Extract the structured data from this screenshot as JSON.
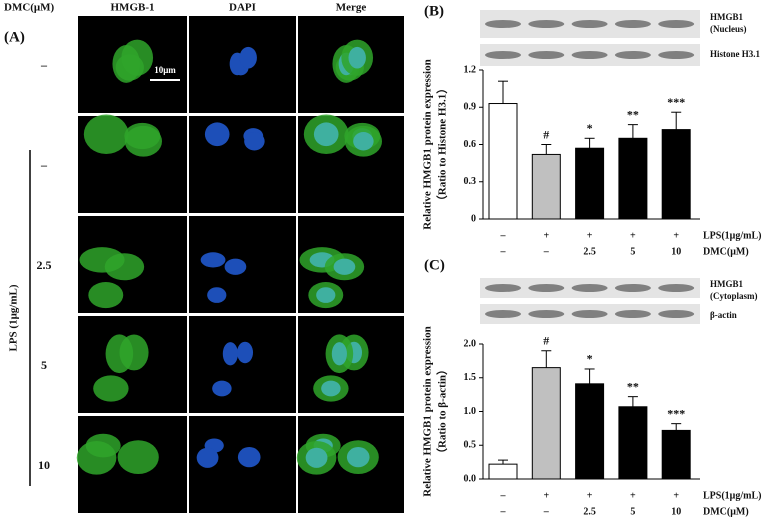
{
  "panel_a": {
    "panel": "(A)",
    "header": "DMC(μM)",
    "columns": [
      "HMGB-1",
      "DAPI",
      "Merge"
    ],
    "rows": [
      "–",
      "–",
      "2.5",
      "5",
      "10"
    ],
    "group_label": "LPS (1μg/mL)",
    "scale_bar": "10μm"
  },
  "chart_data": [
    {
      "type": "bar",
      "panel": "(B)",
      "blot_labels": [
        "HMGB1",
        "(Nucleus)",
        "Histone H3.1"
      ],
      "y_label": [
        "Relative HMGB1 protein expression",
        "（Ratio to Histone H3.1）"
      ],
      "values": [
        0.93,
        0.52,
        0.57,
        0.65,
        0.72
      ],
      "errors": [
        0.18,
        0.08,
        0.08,
        0.11,
        0.14
      ],
      "colors": [
        "#ffffff",
        "#c0c0c0",
        "#000000",
        "#000000",
        "#000000"
      ],
      "annotations": [
        null,
        "#",
        "*",
        "**",
        "***"
      ],
      "treatments": [
        {
          "name": "LPS(1μg/mL)",
          "labels": [
            "–",
            "+",
            "+",
            "+",
            "+"
          ]
        },
        {
          "name": "DMC(μM)",
          "labels": [
            "–",
            "–",
            "2.5",
            "5",
            "10"
          ]
        }
      ],
      "ylim": [
        0,
        1.2
      ],
      "yticks": [
        {
          "value": 0,
          "label": "0"
        },
        0.3,
        0.6,
        0.9,
        1.2
      ]
    },
    {
      "type": "bar",
      "panel": "(C)",
      "blot_labels": [
        "HMGB1",
        "(Cytoplasm)",
        "β-actin"
      ],
      "y_label": [
        "Relative HMGB1 protein expression",
        "（Ratio to β-actin）"
      ],
      "values": [
        0.22,
        1.65,
        1.41,
        1.07,
        0.72
      ],
      "errors": [
        0.06,
        0.25,
        0.22,
        0.15,
        0.1
      ],
      "colors": [
        "#ffffff",
        "#c0c0c0",
        "#000000",
        "#000000",
        "#000000"
      ],
      "annotations": [
        null,
        "#",
        "*",
        "**",
        "***"
      ],
      "treatments": [
        {
          "name": "LPS(1μg/mL)",
          "labels": [
            "–",
            "+",
            "+",
            "+",
            "+"
          ]
        },
        {
          "name": "DMC(μM)",
          "labels": [
            "–",
            "–",
            "2.5",
            "5",
            "10"
          ]
        }
      ],
      "ylim": [
        0,
        2.0
      ],
      "yticks": [
        {
          "value": 0,
          "label": "0.0"
        },
        0.5,
        {
          "value": 1,
          "label": "1.0"
        },
        1.5,
        {
          "value": 2,
          "label": "2.0"
        }
      ]
    }
  ]
}
